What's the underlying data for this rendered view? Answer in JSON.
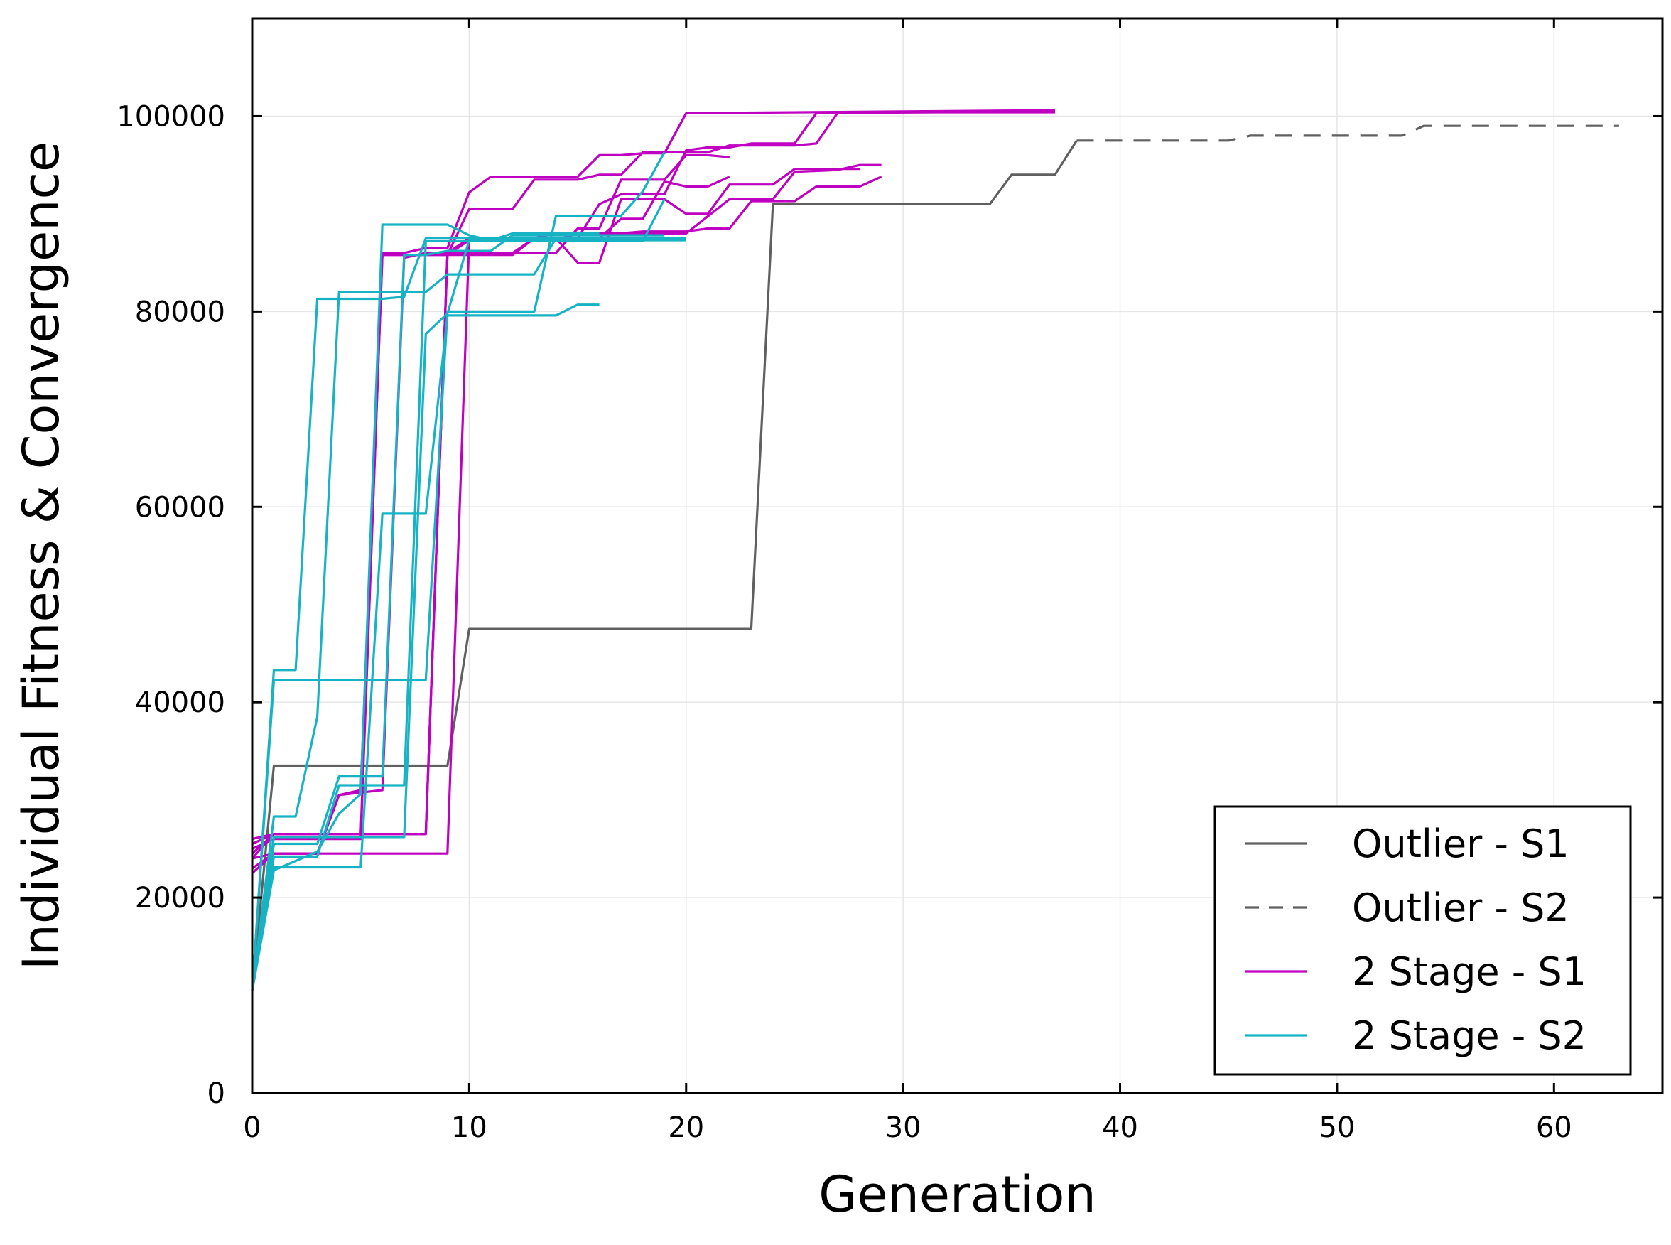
{
  "chart_data": {
    "type": "line",
    "title": "",
    "xlabel": "Generation",
    "ylabel": "Individual Fitness & Convergence",
    "xlim": [
      0,
      65
    ],
    "ylim": [
      0,
      110000
    ],
    "xticks": [
      0,
      10,
      20,
      30,
      40,
      50,
      60
    ],
    "xtick_labels": [
      "0",
      "10",
      "20",
      "30",
      "40",
      "50",
      "60"
    ],
    "yticks": [
      0,
      20000,
      40000,
      60000,
      80000,
      100000
    ],
    "ytick_labels": [
      "0",
      "20000",
      "40000",
      "60000",
      "80000",
      "100000"
    ],
    "grid": true,
    "legend_position": "lower-right",
    "legend": [
      {
        "label": "Outlier - S1",
        "color": "#606060",
        "dash": "solid"
      },
      {
        "label": "Outlier - S2",
        "color": "#606060",
        "dash": "dashed"
      },
      {
        "label": "2 Stage - S1",
        "color": "#c000c0",
        "dash": "solid"
      },
      {
        "label": "2 Stage - S2",
        "color": "#17b3c4",
        "dash": "solid"
      }
    ],
    "series": [
      {
        "name": "Outlier - S1",
        "group": 0,
        "points": [
          [
            0,
            10500
          ],
          [
            1,
            33500
          ],
          [
            9,
            33500
          ],
          [
            10,
            47500
          ],
          [
            23,
            47500
          ],
          [
            24,
            91000
          ],
          [
            34,
            91000
          ],
          [
            35,
            94000
          ],
          [
            37,
            94000
          ],
          [
            38,
            97500
          ]
        ]
      },
      {
        "name": "Outlier - S2",
        "group": 1,
        "points": [
          [
            38,
            97500
          ],
          [
            45,
            97500
          ],
          [
            46,
            98000
          ],
          [
            53,
            98000
          ],
          [
            54,
            99000
          ],
          [
            63,
            99000
          ]
        ]
      },
      {
        "name": "2 Stage - S1 run 1",
        "group": 2,
        "points": [
          [
            0,
            24000
          ],
          [
            1,
            24500
          ],
          [
            3,
            24500
          ],
          [
            4,
            30500
          ],
          [
            5,
            31000
          ],
          [
            6,
            86000
          ],
          [
            7,
            86000
          ],
          [
            8,
            86500
          ],
          [
            9,
            86500
          ],
          [
            10,
            92200
          ],
          [
            11,
            93800
          ],
          [
            15,
            93800
          ],
          [
            16,
            96000
          ],
          [
            17,
            96000
          ],
          [
            18,
            96200
          ],
          [
            19,
            96200
          ],
          [
            20,
            100300
          ],
          [
            37,
            100600
          ]
        ]
      },
      {
        "name": "2 Stage - S1 run 2",
        "group": 2,
        "points": [
          [
            0,
            22500
          ],
          [
            1,
            24500
          ],
          [
            3,
            24500
          ],
          [
            4,
            30500
          ],
          [
            6,
            31000
          ],
          [
            7,
            85500
          ],
          [
            8,
            86000
          ],
          [
            9,
            86000
          ],
          [
            10,
            87500
          ],
          [
            15,
            87500
          ],
          [
            16,
            91000
          ],
          [
            17,
            92000
          ],
          [
            19,
            92000
          ],
          [
            20,
            96500
          ],
          [
            21,
            96800
          ],
          [
            22,
            96800
          ],
          [
            23,
            97200
          ],
          [
            25,
            97200
          ],
          [
            26,
            100300
          ],
          [
            37,
            100500
          ]
        ]
      },
      {
        "name": "2 Stage - S1 run 3",
        "group": 2,
        "points": [
          [
            0,
            25000
          ],
          [
            1,
            26000
          ],
          [
            5,
            26000
          ],
          [
            6,
            85800
          ],
          [
            9,
            85800
          ],
          [
            10,
            90500
          ],
          [
            12,
            90500
          ],
          [
            13,
            93500
          ],
          [
            15,
            93500
          ],
          [
            16,
            94000
          ],
          [
            17,
            94000
          ],
          [
            18,
            96300
          ],
          [
            21,
            96300
          ],
          [
            22,
            97000
          ],
          [
            25,
            97000
          ],
          [
            26,
            97200
          ],
          [
            27,
            100400
          ],
          [
            37,
            100400
          ]
        ]
      },
      {
        "name": "2 Stage - S1 run 4",
        "group": 2,
        "points": [
          [
            0,
            26000
          ],
          [
            1,
            26500
          ],
          [
            5,
            26500
          ],
          [
            6,
            85800
          ],
          [
            9,
            85800
          ],
          [
            10,
            87300
          ],
          [
            14,
            87300
          ],
          [
            15,
            88000
          ],
          [
            17,
            88000
          ],
          [
            18,
            88200
          ],
          [
            20,
            88200
          ],
          [
            21,
            88500
          ],
          [
            22,
            88500
          ],
          [
            23,
            91300
          ],
          [
            25,
            91300
          ],
          [
            26,
            92800
          ],
          [
            28,
            92800
          ],
          [
            29,
            93800
          ]
        ]
      },
      {
        "name": "2 Stage - S1 run 5",
        "group": 2,
        "points": [
          [
            0,
            24500
          ],
          [
            1,
            26500
          ],
          [
            8,
            26500
          ],
          [
            9,
            85800
          ],
          [
            12,
            85800
          ],
          [
            13,
            87500
          ],
          [
            14,
            87500
          ],
          [
            15,
            85000
          ],
          [
            16,
            85000
          ],
          [
            17,
            91500
          ],
          [
            19,
            91500
          ],
          [
            20,
            90000
          ],
          [
            21,
            90000
          ],
          [
            22,
            93000
          ],
          [
            24,
            93000
          ],
          [
            25,
            94600
          ],
          [
            28,
            94600
          ]
        ]
      },
      {
        "name": "2 Stage - S1 run 6",
        "group": 2,
        "points": [
          [
            0,
            24000
          ],
          [
            1,
            26500
          ],
          [
            8,
            26500
          ],
          [
            9,
            86000
          ],
          [
            12,
            86000
          ],
          [
            13,
            87500
          ],
          [
            16,
            87500
          ],
          [
            17,
            89500
          ],
          [
            18,
            89500
          ],
          [
            19,
            93300
          ],
          [
            20,
            92800
          ],
          [
            21,
            92800
          ],
          [
            22,
            93800
          ]
        ]
      },
      {
        "name": "2 Stage - S1 run 7",
        "group": 2,
        "points": [
          [
            0,
            25500
          ],
          [
            1,
            26500
          ],
          [
            8,
            26500
          ],
          [
            9,
            86000
          ],
          [
            14,
            86000
          ],
          [
            15,
            88500
          ],
          [
            16,
            88500
          ],
          [
            17,
            93500
          ],
          [
            19,
            93500
          ],
          [
            20,
            96000
          ],
          [
            21,
            96000
          ],
          [
            22,
            95800
          ]
        ]
      },
      {
        "name": "2 Stage - S1 run 8",
        "group": 2,
        "points": [
          [
            0,
            23000
          ],
          [
            1,
            24500
          ],
          [
            9,
            24500
          ],
          [
            10,
            87500
          ],
          [
            13,
            87500
          ],
          [
            14,
            88000
          ],
          [
            19,
            88000
          ],
          [
            20,
            88000
          ],
          [
            22,
            91500
          ],
          [
            24,
            91500
          ],
          [
            25,
            94300
          ],
          [
            27,
            94500
          ],
          [
            28,
            95000
          ],
          [
            29,
            95000
          ]
        ]
      },
      {
        "name": "2 Stage - S2 run 1",
        "group": 3,
        "points": [
          [
            0,
            10500
          ],
          [
            1,
            43300
          ],
          [
            2,
            43300
          ],
          [
            3,
            81300
          ],
          [
            6,
            81300
          ],
          [
            7,
            81500
          ],
          [
            8,
            87500
          ],
          [
            20,
            87500
          ]
        ]
      },
      {
        "name": "2 Stage - S2 run 2",
        "group": 3,
        "points": [
          [
            0,
            10500
          ],
          [
            1,
            42300
          ],
          [
            8,
            42300
          ],
          [
            9,
            80000
          ],
          [
            13,
            80000
          ],
          [
            14,
            89800
          ],
          [
            17,
            89800
          ],
          [
            18,
            92300
          ],
          [
            19,
            96300
          ]
        ]
      },
      {
        "name": "2 Stage - S2 run 3",
        "group": 3,
        "points": [
          [
            0,
            10500
          ],
          [
            1,
            28300
          ],
          [
            2,
            28300
          ],
          [
            3,
            38500
          ],
          [
            4,
            82000
          ],
          [
            7,
            82000
          ],
          [
            8,
            82000
          ],
          [
            9,
            83800
          ],
          [
            13,
            83800
          ],
          [
            14,
            87500
          ],
          [
            20,
            87500
          ]
        ]
      },
      {
        "name": "2 Stage - S2 run 4",
        "group": 3,
        "points": [
          [
            0,
            10500
          ],
          [
            1,
            25500
          ],
          [
            3,
            25500
          ],
          [
            4,
            32400
          ],
          [
            6,
            32400
          ],
          [
            7,
            85800
          ],
          [
            8,
            85800
          ],
          [
            9,
            86200
          ],
          [
            11,
            86200
          ],
          [
            12,
            87800
          ],
          [
            19,
            87800
          ]
        ]
      },
      {
        "name": "2 Stage - S2 run 5",
        "group": 3,
        "points": [
          [
            0,
            10500
          ],
          [
            1,
            24200
          ],
          [
            3,
            24200
          ],
          [
            4,
            31500
          ],
          [
            7,
            31500
          ],
          [
            8,
            87200
          ],
          [
            18,
            87200
          ],
          [
            19,
            91500
          ]
        ]
      },
      {
        "name": "2 Stage - S2 run 6",
        "group": 3,
        "points": [
          [
            0,
            10500
          ],
          [
            1,
            23100
          ],
          [
            5,
            23100
          ],
          [
            6,
            59300
          ],
          [
            8,
            59300
          ],
          [
            9,
            79600
          ],
          [
            14,
            79600
          ],
          [
            15,
            80700
          ],
          [
            16,
            80700
          ]
        ]
      },
      {
        "name": "2 Stage - S2 run 7",
        "group": 3,
        "points": [
          [
            0,
            10500
          ],
          [
            1,
            22800
          ],
          [
            3,
            24700
          ],
          [
            4,
            28600
          ],
          [
            5,
            30600
          ],
          [
            6,
            88900
          ],
          [
            9,
            88900
          ],
          [
            10,
            87800
          ],
          [
            11,
            87300
          ],
          [
            20,
            87300
          ]
        ]
      },
      {
        "name": "2 Stage - S2 run 8",
        "group": 3,
        "points": [
          [
            0,
            10500
          ],
          [
            1,
            26200
          ],
          [
            7,
            26200
          ],
          [
            8,
            77700
          ],
          [
            9,
            79800
          ],
          [
            10,
            87300
          ],
          [
            11,
            87300
          ],
          [
            12,
            88000
          ],
          [
            16,
            88000
          ]
        ]
      }
    ]
  }
}
